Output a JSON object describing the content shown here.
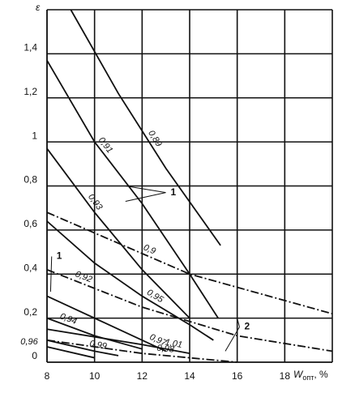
{
  "chart_data": {
    "type": "line",
    "y_label": "ε",
    "x_label": "W",
    "x_label_subscript": "опт",
    "x_label_suffix": ", %",
    "xlim": [
      8,
      20
    ],
    "xticks": [
      8,
      10,
      12,
      14,
      16,
      18
    ],
    "ylim": [
      0,
      1.6
    ],
    "yticks": [
      0,
      {
        "value": 0.2,
        "label": "0,2"
      },
      {
        "value": 0.4,
        "label": "0,4"
      },
      {
        "value": 0.6,
        "label": "0,6"
      },
      {
        "value": 0.8,
        "label": "0,8"
      },
      1,
      {
        "value": 1.2,
        "label": "1,2"
      },
      {
        "value": 1.4,
        "label": "1,4"
      }
    ],
    "grid": true,
    "series": [
      {
        "name": "0,89",
        "color": "#111111",
        "style": "solid",
        "x": [
          9,
          11,
          13,
          15.3
        ],
        "values": [
          1.6,
          1.22,
          0.88,
          0.53
        ]
      },
      {
        "name": "0,91",
        "color": "#111111",
        "style": "solid",
        "x": [
          8,
          10,
          12,
          14,
          15.2
        ],
        "values": [
          1.37,
          1.0,
          0.72,
          0.4,
          0.2
        ]
      },
      {
        "name": "0,93",
        "color": "#111111",
        "style": "solid",
        "x": [
          8,
          10,
          12,
          14
        ],
        "values": [
          0.97,
          0.68,
          0.42,
          0.2
        ]
      },
      {
        "name": "0,9",
        "color": "#111111",
        "style": "dashdot",
        "x": [
          8,
          14,
          20
        ],
        "values": [
          0.68,
          0.4,
          0.22
        ]
      },
      {
        "name": "0,95",
        "color": "#111111",
        "style": "solid",
        "x": [
          8,
          10,
          12,
          14,
          15
        ],
        "values": [
          0.64,
          0.45,
          0.3,
          0.17,
          0.1
        ]
      },
      {
        "name": "0,92",
        "color": "#111111",
        "style": "dashdot",
        "x": [
          8,
          12,
          16,
          20
        ],
        "values": [
          0.42,
          0.25,
          0.12,
          0.05
        ]
      },
      {
        "name": "0,97",
        "color": "#111111",
        "style": "solid",
        "x": [
          8,
          10,
          12,
          13
        ],
        "values": [
          0.3,
          0.2,
          0.1,
          0.05
        ]
      },
      {
        "name": "0,94",
        "color": "#111111",
        "style": "solid",
        "x": [
          8,
          10,
          12
        ],
        "values": [
          0.2,
          0.12,
          0.06
        ]
      },
      {
        "name": "1,01",
        "color": "#111111",
        "style": "solid",
        "x": [
          8,
          12,
          14
        ],
        "values": [
          0.15,
          0.08,
          0.04
        ]
      },
      {
        "name": "0,99",
        "color": "#111111",
        "style": "solid",
        "x": [
          8,
          10,
          11
        ],
        "values": [
          0.1,
          0.05,
          0.03
        ]
      },
      {
        "name": "0,98",
        "color": "#111111",
        "style": "dashdot",
        "x": [
          8,
          12,
          16
        ],
        "values": [
          0.1,
          0.04,
          0.0
        ]
      },
      {
        "name": "0,96",
        "color": "#111111",
        "style": "solid",
        "x": [
          8,
          10
        ],
        "values": [
          0.07,
          0.02
        ]
      }
    ],
    "annotations": [
      "1",
      "1",
      "2"
    ]
  }
}
